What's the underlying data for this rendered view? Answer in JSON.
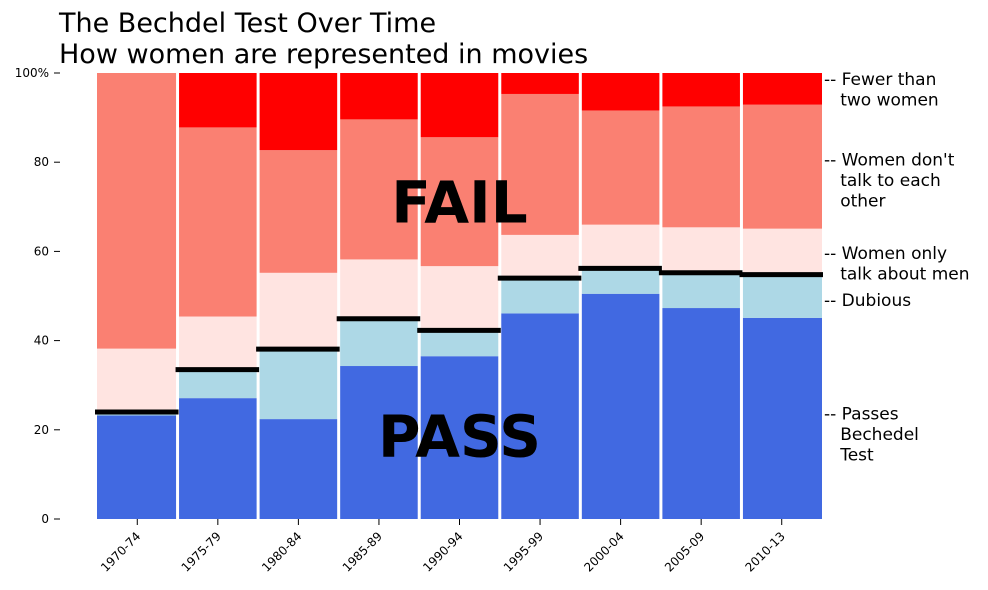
{
  "chart_data": {
    "type": "bar",
    "stacked": true,
    "normalized_percent": true,
    "title_lines": [
      "The Bechdel Test Over Time",
      "How women are represented in movies"
    ],
    "categories": [
      "1970-74",
      "1975-79",
      "1980-84",
      "1985-89",
      "1990-94",
      "1995-99",
      "2000-04",
      "2005-09",
      "2010-13"
    ],
    "ylim": [
      0,
      100
    ],
    "yticks": [
      0,
      20,
      40,
      60,
      80,
      100
    ],
    "ytick_labels": [
      "0",
      "20",
      "40",
      "60",
      "80",
      "100%"
    ],
    "grid": false,
    "series": [
      {
        "key": "pass",
        "color": "#4169e1",
        "values": [
          23.2,
          27.1,
          22.4,
          34.3,
          36.5,
          46.1,
          50.5,
          47.3,
          45.1
        ]
      },
      {
        "key": "dubious",
        "color": "#add8e6",
        "values": [
          0.8,
          6.4,
          15.7,
          10.6,
          5.8,
          7.9,
          5.7,
          7.9,
          9.7
        ]
      },
      {
        "key": "men",
        "color": "#ffe4e1",
        "values": [
          14.2,
          11.9,
          17.1,
          13.3,
          14.4,
          9.7,
          9.8,
          10.2,
          10.3
        ]
      },
      {
        "key": "notalk",
        "color": "#fa8072",
        "values": [
          61.8,
          42.4,
          27.5,
          31.4,
          28.9,
          31.6,
          25.6,
          27.1,
          27.8
        ]
      },
      {
        "key": "fewer",
        "color": "#ff0000",
        "values": [
          0.0,
          12.2,
          17.3,
          10.4,
          14.4,
          4.7,
          8.4,
          7.5,
          7.1
        ]
      }
    ],
    "pass_threshold_line": {
      "color": "#000000",
      "values": [
        24.0,
        33.5,
        38.1,
        44.9,
        42.3,
        54.0,
        56.2,
        55.2,
        54.8
      ]
    },
    "annotations": [
      {
        "text": "FAIL",
        "x_center": 4,
        "y": 71
      },
      {
        "text": "PASS",
        "x_center": 4,
        "y": 18.5
      }
    ],
    "legend": [
      {
        "lines": [
          "-- Fewer than",
          "   two women"
        ],
        "y": 98.5
      },
      {
        "lines": [
          "-- Women don't",
          "   talk to each",
          "   other"
        ],
        "y": 80.5
      },
      {
        "lines": [
          "-- Women only",
          "   talk about men"
        ],
        "y": 59.5
      },
      {
        "lines": [
          "-- Dubious"
        ],
        "y": 49.0
      },
      {
        "lines": [
          "-- Passes",
          "   Bechedel",
          "   Test"
        ],
        "y": 23.5
      }
    ]
  }
}
